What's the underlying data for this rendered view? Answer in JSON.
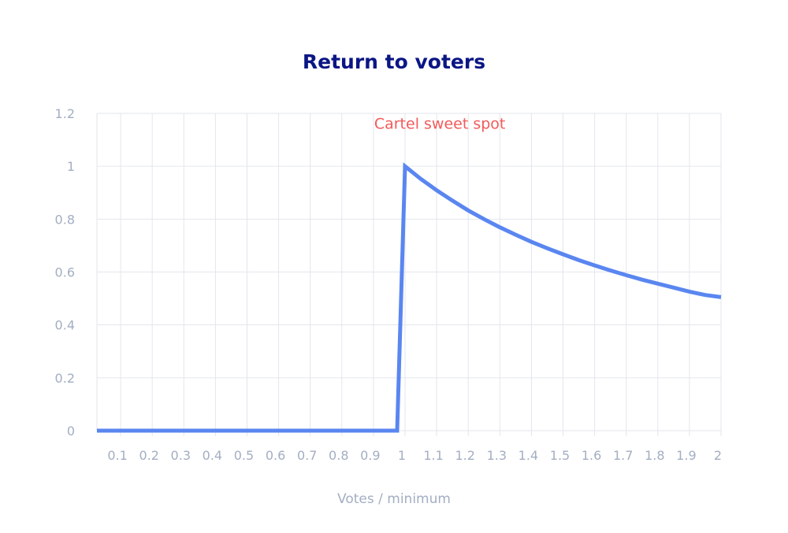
{
  "chart_data": {
    "type": "line",
    "title": "Return to voters",
    "xlabel": "Votes / minimum",
    "ylabel": "",
    "xlim": [
      0.025,
      2
    ],
    "ylim": [
      0,
      1.2
    ],
    "x_ticks": [
      "0.1",
      "0.2",
      "0.3",
      "0.4",
      "0.5",
      "0.6",
      "0.7",
      "0.8",
      "0.9",
      "1",
      "1.1",
      "1.2",
      "1.3",
      "1.4",
      "1.5",
      "1.6",
      "1.7",
      "1.8",
      "1.9",
      "2"
    ],
    "y_ticks": [
      "0",
      "0.2",
      "0.4",
      "0.6",
      "0.8",
      "1",
      "1.2"
    ],
    "grid": true,
    "legend": "none",
    "annotation": {
      "text": "Cartel sweet spot",
      "x": 1.11,
      "y": 1.18,
      "color": "#f25a5a"
    },
    "series": [
      {
        "color": "#5a86f0",
        "x": [
          0.025,
          0.975,
          1.0,
          1.05,
          1.1,
          1.15,
          1.2,
          1.25,
          1.3,
          1.35,
          1.4,
          1.45,
          1.5,
          1.55,
          1.6,
          1.65,
          1.7,
          1.75,
          1.8,
          1.85,
          1.9,
          1.95,
          2.0
        ],
        "y": [
          0,
          0,
          1,
          0.952,
          0.909,
          0.87,
          0.833,
          0.8,
          0.769,
          0.741,
          0.714,
          0.69,
          0.667,
          0.645,
          0.625,
          0.606,
          0.588,
          0.571,
          0.556,
          0.541,
          0.526,
          0.513,
          0.505
        ]
      }
    ]
  },
  "colors": {
    "title": "#0b1685",
    "line": "#5a86f0",
    "grid": "#e3e6ec",
    "ticks": "#a3aec2",
    "annotation": "#f25a5a"
  }
}
